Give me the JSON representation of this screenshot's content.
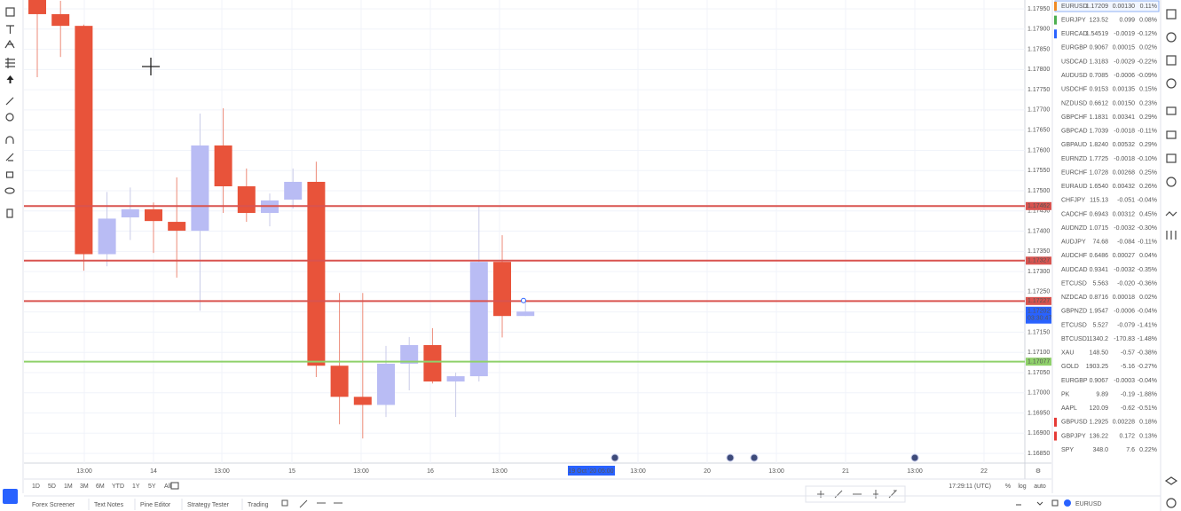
{
  "chart_data": {
    "type": "candlestick",
    "open": [
      1.17972,
      1.17937,
      1.17908,
      1.17343,
      1.17434,
      1.17454,
      1.17423,
      1.17401,
      1.17612,
      1.17511,
      1.17445,
      1.17478,
      1.17522,
      1.17067,
      1.1699,
      1.1697,
      1.17072,
      1.17118,
      1.17028,
      1.17041,
      1.17324,
      1.1719
    ],
    "high": [
      1.17972,
      1.1797,
      1.17911,
      1.17497,
      1.17508,
      1.17471,
      1.17533,
      1.17691,
      1.17704,
      1.17555,
      1.17493,
      1.17555,
      1.17572,
      1.17247,
      1.17247,
      1.17116,
      1.17138,
      1.1716,
      1.1705,
      1.17463,
      1.1739,
      1.17225
    ],
    "low": [
      1.17781,
      1.17831,
      1.17302,
      1.17313,
      1.17378,
      1.17346,
      1.17285,
      1.17203,
      1.17445,
      1.17423,
      1.17412,
      1.17456,
      1.17039,
      1.16922,
      1.16887,
      1.1694,
      1.17006,
      1.17023,
      1.1694,
      1.17028,
      1.17137,
      1.1719
    ],
    "close": [
      1.17937,
      1.17908,
      1.17343,
      1.17431,
      1.17454,
      1.17425,
      1.17401,
      1.17612,
      1.17511,
      1.17445,
      1.17476,
      1.17522,
      1.17067,
      1.1699,
      1.1697,
      1.17072,
      1.17118,
      1.17028,
      1.17041,
      1.17324,
      1.1719,
      1.17201
    ],
    "up_color": "#b9bcf4",
    "down_color": "#e8533a",
    "ylim": [
      1.16826,
      1.17972
    ],
    "yticks": [
      {
        "value": 1.1795,
        "label": "1.17950"
      },
      {
        "value": 1.179,
        "label": "1.17900"
      },
      {
        "value": 1.1785,
        "label": "1.17850"
      },
      {
        "value": 1.178,
        "label": "1.17800"
      },
      {
        "value": 1.1775,
        "label": "1.17750"
      },
      {
        "value": 1.177,
        "label": "1.17700"
      },
      {
        "value": 1.1765,
        "label": "1.17650"
      },
      {
        "value": 1.176,
        "label": "1.17600"
      },
      {
        "value": 1.1755,
        "label": "1.17550"
      },
      {
        "value": 1.175,
        "label": "1.17500"
      },
      {
        "value": 1.1745,
        "label": "1.17450"
      },
      {
        "value": 1.174,
        "label": "1.17400"
      },
      {
        "value": 1.1735,
        "label": "1.17350"
      },
      {
        "value": 1.173,
        "label": "1.17300"
      },
      {
        "value": 1.1725,
        "label": "1.17250"
      },
      {
        "value": 1.172,
        "label": "1.17200"
      },
      {
        "value": 1.1715,
        "label": "1.17150"
      },
      {
        "value": 1.171,
        "label": "1.17100"
      },
      {
        "value": 1.1705,
        "label": "1.17050"
      },
      {
        "value": 1.17,
        "label": "1.17000"
      },
      {
        "value": 1.1695,
        "label": "1.16950"
      },
      {
        "value": 1.169,
        "label": "1.16900"
      },
      {
        "value": 1.1685,
        "label": "1.16850"
      }
    ],
    "grid": true,
    "x_labels": [
      "13:00",
      "14",
      "13:00",
      "15",
      "13:00",
      "16",
      "13:00",
      "13:00",
      "20",
      "13:00",
      "21",
      "13:00",
      "22"
    ],
    "crosshair_time": "19 Oct '20  05:00",
    "levels": [
      1.17462,
      1.17327,
      1.17227,
      1.17077
    ],
    "level_colors": [
      "#d9534f",
      "#d9534f",
      "#d9534f",
      "#8fd16a"
    ],
    "last_price": 1.17202,
    "countdown": "03:30:47"
  },
  "range_buttons": [
    "1D",
    "5D",
    "1M",
    "3M",
    "6M",
    "YTD",
    "1Y",
    "5Y",
    "All"
  ],
  "clock": "17:29:11 (UTC)",
  "scale_buttons": [
    "%",
    "log",
    "auto"
  ],
  "tabs": [
    "Forex Screener",
    "Text Notes",
    "Pine Editor",
    "Strategy Tester",
    "Trading"
  ],
  "symbol": "EURUSD",
  "watchlist": {
    "rows": [
      {
        "symbol": "EURUSD",
        "last": "1.17209",
        "change": "0.00130",
        "change_pct": "0.11%",
        "flag": "#f08a24"
      },
      {
        "symbol": "EURJPY",
        "last": "123.52",
        "change": "0.099",
        "change_pct": "0.08%",
        "flag": "#4caf50"
      },
      {
        "symbol": "EURCAD",
        "last": "1.54519",
        "change": "-0.0019",
        "change_pct": "-0.12%",
        "flag": "#2962ff"
      },
      {
        "symbol": "EURGBP",
        "last": "0.9067",
        "change": "0.00015",
        "change_pct": "0.02%"
      },
      {
        "symbol": "USDCAD",
        "last": "1.3183",
        "change": "-0.0029",
        "change_pct": "-0.22%"
      },
      {
        "symbol": "AUDUSD",
        "last": "0.7085",
        "change": "-0.0006",
        "change_pct": "-0.09%"
      },
      {
        "symbol": "USDCHF",
        "last": "0.9153",
        "change": "0.00135",
        "change_pct": "0.15%"
      },
      {
        "symbol": "NZDUSD",
        "last": "0.6612",
        "change": "0.00150",
        "change_pct": "0.23%"
      },
      {
        "symbol": "GBPCHF",
        "last": "1.1831",
        "change": "0.00341",
        "change_pct": "0.29%"
      },
      {
        "symbol": "GBPCAD",
        "last": "1.7039",
        "change": "-0.0018",
        "change_pct": "-0.11%"
      },
      {
        "symbol": "GBPAUD",
        "last": "1.8240",
        "change": "0.00532",
        "change_pct": "0.29%"
      },
      {
        "symbol": "EURNZD",
        "last": "1.7725",
        "change": "-0.0018",
        "change_pct": "-0.10%"
      },
      {
        "symbol": "EURCHF",
        "last": "1.0728",
        "change": "0.00268",
        "change_pct": "0.25%"
      },
      {
        "symbol": "EURAUD",
        "last": "1.6540",
        "change": "0.00432",
        "change_pct": "0.26%"
      },
      {
        "symbol": "CHFJPY",
        "last": "115.13",
        "change": "-0.051",
        "change_pct": "-0.04%"
      },
      {
        "symbol": "CADCHF",
        "last": "0.6943",
        "change": "0.00312",
        "change_pct": "0.45%"
      },
      {
        "symbol": "AUDNZD",
        "last": "1.0715",
        "change": "-0.0032",
        "change_pct": "-0.30%"
      },
      {
        "symbol": "AUDJPY",
        "last": "74.68",
        "change": "-0.084",
        "change_pct": "-0.11%"
      },
      {
        "symbol": "AUDCHF",
        "last": "0.6486",
        "change": "0.00027",
        "change_pct": "0.04%"
      },
      {
        "symbol": "AUDCAD",
        "last": "0.9341",
        "change": "-0.0032",
        "change_pct": "-0.35%"
      },
      {
        "symbol": "ETCUSD",
        "last": "5.563",
        "change": "-0.020",
        "change_pct": "-0.36%"
      },
      {
        "symbol": "NZDCAD",
        "last": "0.8716",
        "change": "0.00018",
        "change_pct": "0.02%"
      },
      {
        "symbol": "GBPNZD",
        "last": "1.9547",
        "change": "-0.0006",
        "change_pct": "-0.04%"
      },
      {
        "symbol": "ETCUSD",
        "last": "5.527",
        "change": "-0.079",
        "change_pct": "-1.41%"
      },
      {
        "symbol": "BTCUSD",
        "last": "11340.2",
        "change": "-170.83",
        "change_pct": "-1.48%"
      },
      {
        "symbol": "XAU",
        "last": "148.50",
        "change": "-0.57",
        "change_pct": "-0.38%"
      },
      {
        "symbol": "GOLD",
        "last": "1903.25",
        "change": "-5.16",
        "change_pct": "-0.27%"
      },
      {
        "symbol": "EURGBP",
        "last": "0.9067",
        "change": "-0.0003",
        "change_pct": "-0.04%"
      },
      {
        "symbol": "PK",
        "last": "9.89",
        "change": "-0.19",
        "change_pct": "-1.88%"
      },
      {
        "symbol": "AAPL",
        "last": "120.09",
        "change": "-0.62",
        "change_pct": "-0.51%"
      },
      {
        "symbol": "GBPUSD",
        "last": "1.2925",
        "change": "0.00228",
        "change_pct": "0.18%",
        "flag": "#e53935"
      },
      {
        "symbol": "GBPJPY",
        "last": "136.22",
        "change": "0.172",
        "change_pct": "0.13%",
        "flag": "#e53935"
      },
      {
        "symbol": "SPY",
        "last": "348.0",
        "change": "7.6",
        "change_pct": "0.22%"
      }
    ]
  }
}
